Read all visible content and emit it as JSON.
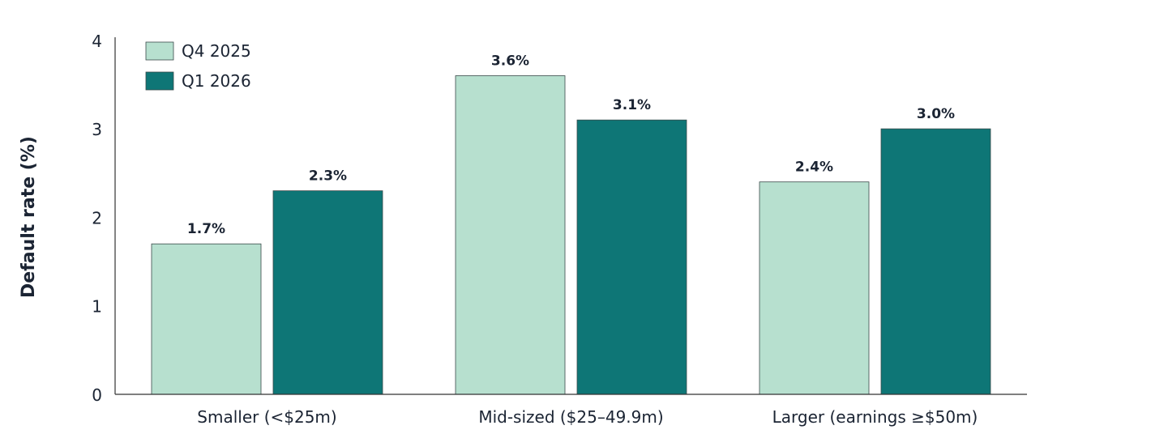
{
  "chart_data": {
    "type": "bar",
    "title": "",
    "xlabel": "",
    "ylabel": "Default rate (%)",
    "ylim": [
      0,
      4
    ],
    "yticks": [
      "0",
      "1",
      "2",
      "3",
      "4"
    ],
    "categories": [
      "Smaller (<$25m)",
      "Mid-sized ($25–49.9m)",
      "Larger (earnings ≥$50m)"
    ],
    "series": [
      {
        "name": "Q4 2025",
        "color": "#b7e0cf",
        "values": [
          1.7,
          3.6,
          2.4
        ],
        "labels": [
          "1.7%",
          "3.6%",
          "2.4%"
        ]
      },
      {
        "name": "Q1 2026",
        "color": "#0e7676",
        "values": [
          2.3,
          3.1,
          3.0
        ],
        "labels": [
          "2.3%",
          "3.1%",
          "3.0%"
        ]
      }
    ],
    "legend": "top-left",
    "grid": false
  }
}
